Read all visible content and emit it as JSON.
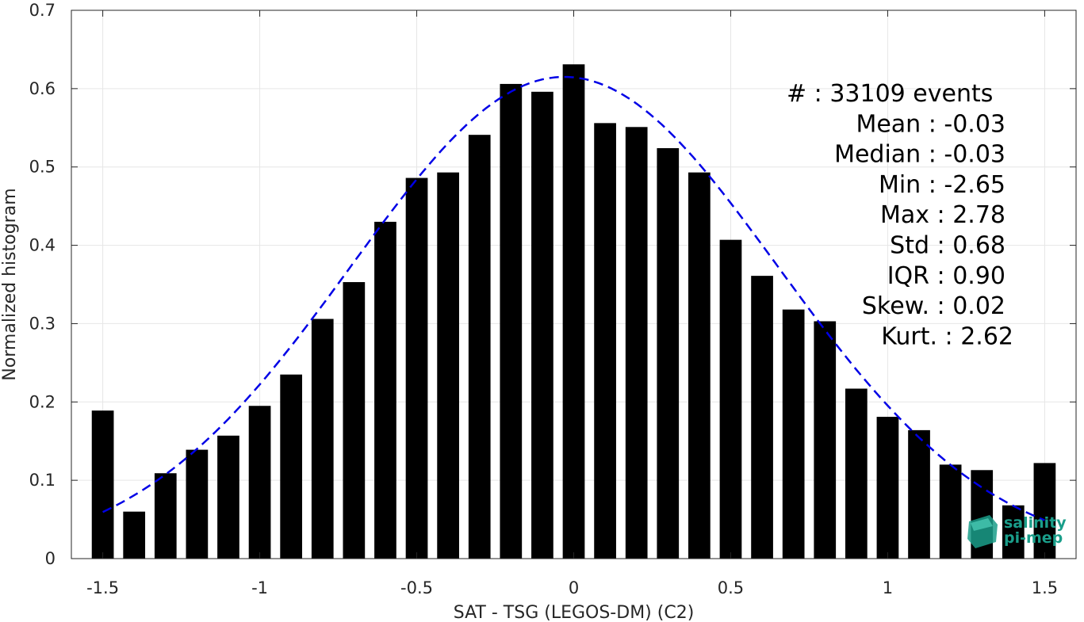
{
  "chart_data": {
    "type": "bar",
    "xlabel": "SAT - TSG (LEGOS-DM) (C2)",
    "ylabel": "Normalized histogram",
    "xlim": [
      -1.6,
      1.6
    ],
    "ylim": [
      0,
      0.7
    ],
    "x_ticks": [
      -1.5,
      -1,
      -0.5,
      0,
      0.5,
      1,
      1.5
    ],
    "x_tick_labels": [
      "-1.5",
      "-1",
      "-0.5",
      "0",
      "0.5",
      "1",
      "1.5"
    ],
    "y_ticks": [
      0,
      0.1,
      0.2,
      0.3,
      0.4,
      0.5,
      0.6,
      0.7
    ],
    "y_tick_labels": [
      "0",
      "0.1",
      "0.2",
      "0.3",
      "0.4",
      "0.5",
      "0.6",
      "0.7"
    ],
    "grid": true,
    "bar_width": 0.07,
    "bar_color": "#000000",
    "bins": [
      -1.5,
      -1.4,
      -1.3,
      -1.2,
      -1.1,
      -1.0,
      -0.9,
      -0.8,
      -0.7,
      -0.6,
      -0.5,
      -0.4,
      -0.3,
      -0.2,
      -0.1,
      0.0,
      0.1,
      0.2,
      0.3,
      0.4,
      0.5,
      0.6,
      0.7,
      0.8,
      0.9,
      1.0,
      1.1,
      1.2,
      1.3,
      1.4,
      1.5
    ],
    "values": [
      0.189,
      0.06,
      0.109,
      0.139,
      0.157,
      0.195,
      0.235,
      0.306,
      0.353,
      0.43,
      0.486,
      0.493,
      0.541,
      0.606,
      0.596,
      0.631,
      0.556,
      0.551,
      0.524,
      0.493,
      0.407,
      0.361,
      0.318,
      0.303,
      0.217,
      0.181,
      0.164,
      0.12,
      0.113,
      0.068,
      0.122
    ],
    "fit_curve": {
      "style": "dashed",
      "color": "#0000e6",
      "mean": -0.03,
      "std": 0.68,
      "peak": 0.615,
      "x_range": [
        -1.5,
        1.5
      ]
    },
    "annotations": [
      {
        "text": "#  : 33109 events",
        "anchor": "start"
      },
      {
        "text": "Mean : -0.03",
        "anchor": "end"
      },
      {
        "text": "Median : -0.03",
        "anchor": "end"
      },
      {
        "text": "Min : -2.65",
        "anchor": "end"
      },
      {
        "text": "Max : 2.78",
        "anchor": "end"
      },
      {
        "text": "Std : 0.68",
        "anchor": "end"
      },
      {
        "text": "IQR : 0.90",
        "anchor": "end"
      },
      {
        "text": "Skew. : 0.02",
        "anchor": "end"
      },
      {
        "text": "Kurt. : 2.62",
        "anchor": "end"
      }
    ]
  },
  "logo": {
    "line1": "salinity",
    "line2": "pi-mep",
    "color": "#1a9e8a"
  }
}
